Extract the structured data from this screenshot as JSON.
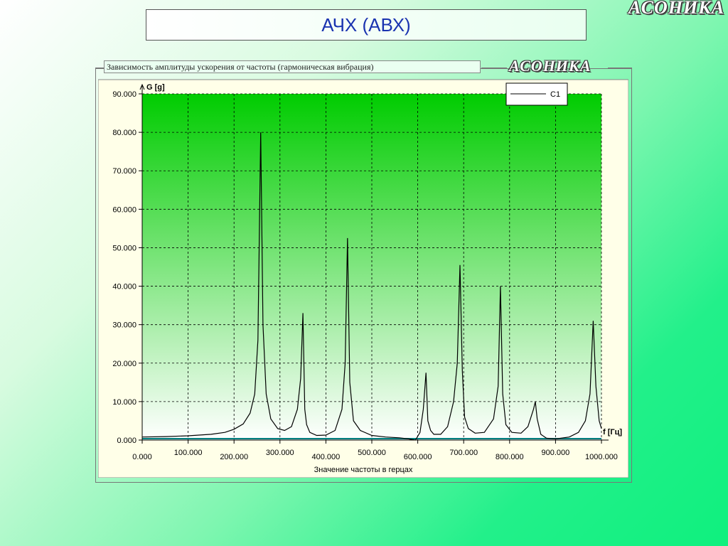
{
  "slide": {
    "title": "АЧХ (АВХ)",
    "logo": "АСОНИКА"
  },
  "panel": {
    "title": "Зависимость амплитуды ускорения от частоты (гармоническая вибрация)",
    "logo": "АСОНИКА"
  },
  "colors": {
    "plot_top": "#00cc00",
    "plot_bottom": "#ffffff",
    "frame_bg": "#ffffe8",
    "grid": "#000000",
    "series": "#000000"
  },
  "chart_data": {
    "type": "line",
    "xlabel": "Значение частоты в герцах",
    "x_axis_label": "f [Гц]",
    "ylabel": "G [g]",
    "xlim": [
      0,
      1000
    ],
    "ylim": [
      0,
      90
    ],
    "x_ticks": [
      "0.000",
      "100.000",
      "200.000",
      "300.000",
      "400.000",
      "500.000",
      "600.000",
      "700.000",
      "800.000",
      "900.000",
      "1000.000"
    ],
    "y_ticks": [
      "0.000",
      "10.000",
      "20.000",
      "30.000",
      "40.000",
      "50.000",
      "60.000",
      "70.000",
      "80.000",
      "90.000"
    ],
    "grid": true,
    "legend_position": "top-right",
    "series": [
      {
        "name": "C1",
        "x": [
          0,
          50,
          100,
          150,
          180,
          200,
          220,
          235,
          245,
          252,
          258,
          263,
          270,
          280,
          295,
          310,
          325,
          338,
          345,
          350,
          354,
          358,
          365,
          380,
          400,
          420,
          435,
          442,
          447,
          452,
          460,
          475,
          500,
          530,
          560,
          580,
          595,
          605,
          612,
          618,
          622,
          628,
          635,
          650,
          665,
          678,
          686,
          692,
          697,
          702,
          710,
          725,
          745,
          765,
          775,
          780,
          785,
          792,
          805,
          825,
          840,
          852,
          856,
          860,
          868,
          880,
          900,
          930,
          950,
          965,
          975,
          982,
          988,
          995,
          1000
        ],
        "y": [
          0.8,
          0.9,
          1.1,
          1.5,
          2.0,
          2.8,
          4.2,
          7.0,
          12,
          26,
          80,
          30,
          12,
          5.5,
          3.0,
          2.5,
          3.5,
          8.0,
          16,
          33,
          8.0,
          4.0,
          2.0,
          1.2,
          1.3,
          2.5,
          8.0,
          20,
          52.5,
          15,
          5.0,
          2.5,
          1.2,
          0.8,
          0.6,
          0.3,
          0.0,
          2.0,
          8.0,
          17.5,
          5.0,
          2.5,
          1.5,
          1.5,
          3.5,
          10,
          20,
          45.5,
          18,
          6.0,
          3.0,
          1.8,
          2.0,
          5.5,
          14,
          40,
          12,
          4.0,
          2.0,
          1.8,
          3.5,
          8.0,
          10,
          5.5,
          1.5,
          0.5,
          0.3,
          0.8,
          2.0,
          5.0,
          12,
          31,
          14,
          5.0,
          3.0
        ]
      }
    ]
  }
}
